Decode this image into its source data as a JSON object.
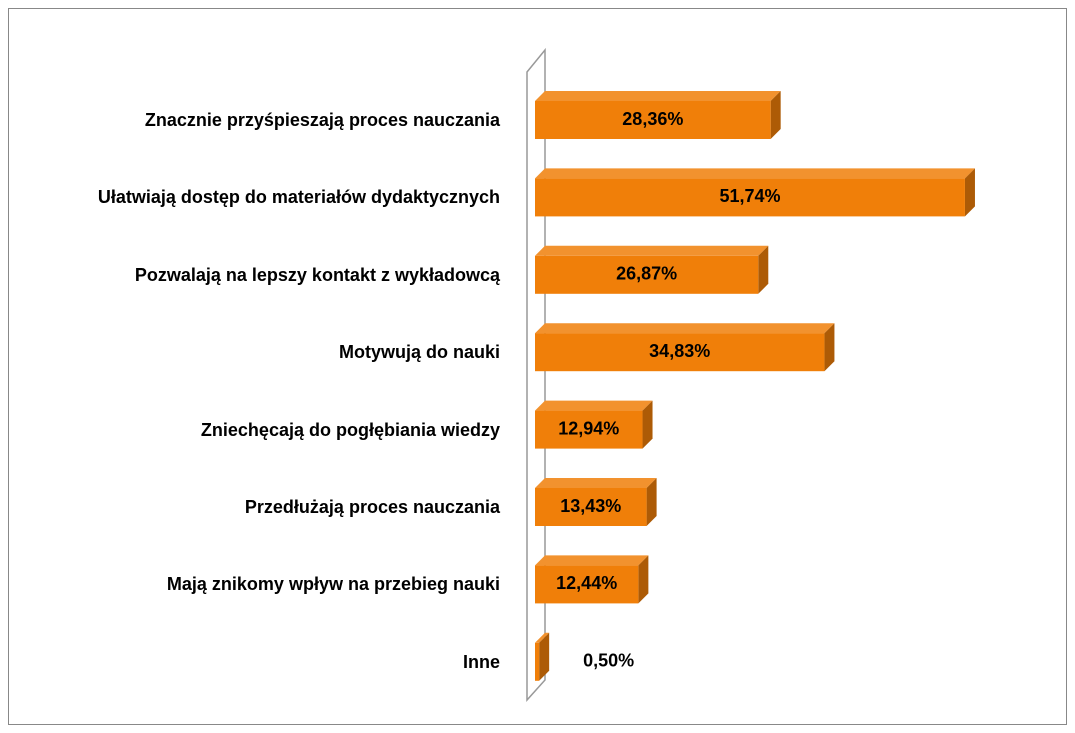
{
  "chart_data": {
    "type": "bar3d-horizontal",
    "categories": [
      "Znacznie przyśpieszają proces nauczania",
      "Ułatwiają dostęp do materiałów dydaktycznych",
      "Pozwalają na lepszy kontakt z wykładowcą",
      "Motywują do nauki",
      "Zniechęcają do pogłębiania wiedzy",
      "Przedłużają proces nauczania",
      "Mają znikomy wpływ na przebieg nauki",
      "Inne"
    ],
    "values": [
      28.36,
      51.74,
      26.87,
      34.83,
      12.94,
      13.43,
      12.44,
      0.5
    ],
    "value_labels": [
      "28,36%",
      "51,74%",
      "26,87%",
      "34,83%",
      "12,94%",
      "13,43%",
      "12,44%",
      "0,50%"
    ],
    "color": "#f07f09"
  }
}
